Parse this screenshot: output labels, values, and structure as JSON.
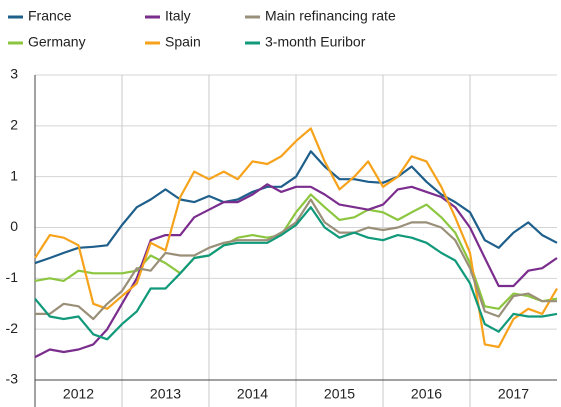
{
  "chart_data": {
    "type": "line",
    "x": [
      2012,
      2012.17,
      2012.33,
      2012.5,
      2012.67,
      2012.83,
      2013,
      2013.17,
      2013.33,
      2013.5,
      2013.67,
      2013.83,
      2014,
      2014.17,
      2014.33,
      2014.5,
      2014.67,
      2014.83,
      2015,
      2015.17,
      2015.33,
      2015.5,
      2015.67,
      2015.83,
      2016,
      2016.17,
      2016.33,
      2016.5,
      2016.67,
      2016.83,
      2017,
      2017.17,
      2017.33,
      2017.5,
      2017.67,
      2017.83,
      2018
    ],
    "series": [
      {
        "name": "France",
        "color": "#1f5f8b",
        "values": [
          -0.7,
          -0.6,
          -0.5,
          -0.4,
          -0.38,
          -0.35,
          0.05,
          0.4,
          0.55,
          0.75,
          0.55,
          0.5,
          0.62,
          0.5,
          0.55,
          0.7,
          0.8,
          0.8,
          1.0,
          1.5,
          1.2,
          0.95,
          0.95,
          0.9,
          0.88,
          1.0,
          1.2,
          0.9,
          0.65,
          0.5,
          0.3,
          -0.25,
          -0.4,
          -0.1,
          0.1,
          -0.15,
          -0.3
        ]
      },
      {
        "name": "Germany",
        "color": "#8cc63f",
        "values": [
          -1.05,
          -1.0,
          -1.05,
          -0.85,
          -0.9,
          -0.9,
          -0.9,
          -0.85,
          -0.55,
          -0.7,
          -0.9,
          -0.6,
          -0.55,
          -0.35,
          -0.2,
          -0.15,
          -0.2,
          -0.15,
          0.3,
          0.65,
          0.4,
          0.15,
          0.2,
          0.35,
          0.3,
          0.15,
          0.3,
          0.45,
          0.2,
          -0.1,
          -0.7,
          -1.55,
          -1.6,
          -1.3,
          -1.35,
          -1.45,
          -1.4
        ]
      },
      {
        "name": "Italy",
        "color": "#7b2d8e",
        "values": [
          -2.55,
          -2.4,
          -2.45,
          -2.4,
          -2.3,
          -2.0,
          -1.5,
          -1.0,
          -0.25,
          -0.15,
          -0.15,
          0.2,
          0.35,
          0.5,
          0.5,
          0.65,
          0.85,
          0.7,
          0.8,
          0.8,
          0.65,
          0.45,
          0.4,
          0.35,
          0.45,
          0.75,
          0.8,
          0.7,
          0.6,
          0.4,
          0.0,
          -0.6,
          -1.15,
          -1.15,
          -0.85,
          -0.8,
          -0.6
        ]
      },
      {
        "name": "Spain",
        "color": "#f7a21b",
        "values": [
          -0.6,
          -0.15,
          -0.2,
          -0.35,
          -1.5,
          -1.6,
          -1.35,
          -1.1,
          -0.3,
          -0.45,
          0.6,
          1.1,
          0.95,
          1.1,
          0.95,
          1.3,
          1.25,
          1.4,
          1.7,
          1.95,
          1.3,
          0.75,
          1.0,
          1.3,
          0.8,
          1.0,
          1.4,
          1.3,
          0.8,
          0.2,
          -0.5,
          -2.3,
          -2.35,
          -1.8,
          -1.6,
          -1.7,
          -1.2
        ]
      },
      {
        "name": "Main refinancing rate",
        "color": "#9a8f78",
        "values": [
          -1.7,
          -1.7,
          -1.5,
          -1.55,
          -1.8,
          -1.5,
          -1.25,
          -0.8,
          -0.85,
          -0.5,
          -0.55,
          -0.55,
          -0.4,
          -0.3,
          -0.25,
          -0.25,
          -0.25,
          -0.1,
          0.1,
          0.55,
          0.1,
          -0.1,
          -0.1,
          0.0,
          -0.05,
          0.0,
          0.1,
          0.1,
          0.0,
          -0.25,
          -0.8,
          -1.65,
          -1.75,
          -1.35,
          -1.3,
          -1.45,
          -1.45
        ]
      },
      {
        "name": "3-month Euribor",
        "color": "#10997a",
        "values": [
          -1.4,
          -1.75,
          -1.8,
          -1.75,
          -2.1,
          -2.2,
          -1.9,
          -1.65,
          -1.2,
          -1.2,
          -0.9,
          -0.6,
          -0.55,
          -0.35,
          -0.3,
          -0.3,
          -0.3,
          -0.15,
          0.05,
          0.4,
          0.0,
          -0.2,
          -0.1,
          -0.2,
          -0.25,
          -0.15,
          -0.2,
          -0.3,
          -0.5,
          -0.65,
          -1.1,
          -1.9,
          -2.05,
          -1.7,
          -1.75,
          -1.75,
          -1.7
        ]
      }
    ],
    "xlim": [
      2012,
      2018
    ],
    "xticks": [
      {
        "value": 2012,
        "label": "2012"
      },
      {
        "value": 2013,
        "label": "2013"
      },
      {
        "value": 2014,
        "label": "2014"
      },
      {
        "value": 2015,
        "label": "2015"
      },
      {
        "value": 2016,
        "label": "2016"
      },
      {
        "value": 2017,
        "label": "2017"
      }
    ],
    "ylim": [
      -3,
      3
    ],
    "yticks": [
      -3,
      -2,
      -1,
      0,
      1,
      2,
      3
    ],
    "grid": true
  }
}
